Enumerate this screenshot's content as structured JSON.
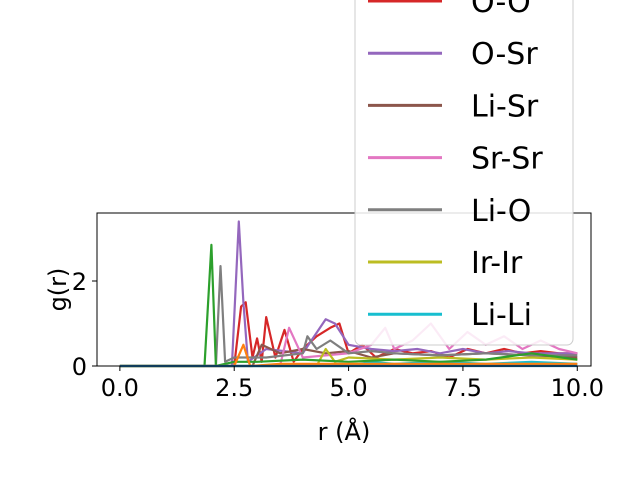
{
  "chart_data": {
    "type": "line",
    "xlabel": "r (Å)",
    "ylabel": "g(r)",
    "xlim": [
      -0.5,
      10.3
    ],
    "ylim": [
      0,
      3.6
    ],
    "xticks": [
      0.0,
      2.5,
      5.0,
      7.5,
      10.0
    ],
    "xtick_labels": [
      "0.0",
      "2.5",
      "5.0",
      "7.5",
      "10.0"
    ],
    "yticks": [
      0,
      2
    ],
    "ytick_labels": [
      "0",
      "2"
    ],
    "grid": false,
    "legend_position": "upper-right",
    "series": [
      {
        "name": "O-O",
        "color": "#d62728",
        "x": [
          0.0,
          2.5,
          2.65,
          2.75,
          2.9,
          3.0,
          3.1,
          3.2,
          3.4,
          3.6,
          3.8,
          4.0,
          4.3,
          4.6,
          4.8,
          5.0,
          5.3,
          5.6,
          6.0,
          6.4,
          6.8,
          7.2,
          7.6,
          8.0,
          8.4,
          8.8,
          9.2,
          9.6,
          10.0
        ],
        "y": [
          0.0,
          0.0,
          1.4,
          1.5,
          0.2,
          0.65,
          0.1,
          1.15,
          0.2,
          0.85,
          0.1,
          0.4,
          0.7,
          0.9,
          1.0,
          0.3,
          0.5,
          0.2,
          0.4,
          0.3,
          0.35,
          0.2,
          0.4,
          0.3,
          0.4,
          0.3,
          0.35,
          0.3,
          0.3
        ]
      },
      {
        "name": "O-Sr",
        "color": "#9467bd",
        "x": [
          0.0,
          2.45,
          2.6,
          2.7,
          2.8,
          3.2,
          4.0,
          4.5,
          4.7,
          5.0,
          5.5,
          6.0,
          6.5,
          7.0,
          7.5,
          8.0,
          8.5,
          9.0,
          9.5,
          10.0
        ],
        "y": [
          0.0,
          0.0,
          3.4,
          1.5,
          0.1,
          0.4,
          0.3,
          1.1,
          1.0,
          0.5,
          0.4,
          0.35,
          0.4,
          0.3,
          0.4,
          0.3,
          0.35,
          0.3,
          0.3,
          0.3
        ]
      },
      {
        "name": "Li-Sr",
        "color": "#8c564b",
        "x": [
          0.0,
          2.9,
          3.1,
          3.5,
          4.0,
          4.5,
          5.0,
          5.5,
          6.0,
          7.0,
          8.0,
          9.0,
          10.0
        ],
        "y": [
          0.0,
          0.0,
          0.5,
          0.3,
          0.4,
          0.3,
          0.35,
          0.2,
          0.3,
          0.25,
          0.3,
          0.25,
          0.2
        ]
      },
      {
        "name": "Sr-Sr",
        "color": "#e377c2",
        "x": [
          0.0,
          3.5,
          3.7,
          4.0,
          5.0,
          5.5,
          5.8,
          6.0,
          6.4,
          6.8,
          7.2,
          7.6,
          8.0,
          8.4,
          8.8,
          9.2,
          9.6,
          10.0
        ],
        "y": [
          0.0,
          0.0,
          0.9,
          0.2,
          0.3,
          0.5,
          0.9,
          0.4,
          0.6,
          1.0,
          0.4,
          0.8,
          0.5,
          0.7,
          0.4,
          0.6,
          0.4,
          0.3
        ]
      },
      {
        "name": "Li-O",
        "color": "#7f7f7f",
        "x": [
          0.0,
          2.1,
          2.2,
          2.3,
          2.5,
          3.2,
          4.0,
          4.1,
          4.3,
          4.6,
          5.0,
          5.5,
          6.0,
          7.0,
          8.0,
          9.0,
          10.0
        ],
        "y": [
          0.0,
          0.0,
          2.35,
          0.1,
          0.2,
          0.2,
          0.3,
          0.7,
          0.4,
          0.6,
          0.3,
          0.35,
          0.3,
          0.25,
          0.3,
          0.25,
          0.25
        ]
      },
      {
        "name": "Ir-Ir",
        "color": "#bcbd22",
        "x": [
          0.0,
          4.3,
          4.5,
          4.7,
          5.0,
          6.0,
          7.0,
          8.0,
          9.0,
          10.0
        ],
        "y": [
          0.0,
          0.0,
          0.4,
          0.1,
          0.2,
          0.15,
          0.2,
          0.15,
          0.2,
          0.15
        ]
      },
      {
        "name": "Li-Li",
        "color": "#17becf",
        "x": [
          0.0,
          5.0,
          5.5,
          6.0,
          7.0,
          8.0,
          9.0,
          10.0
        ],
        "y": [
          0.0,
          0.0,
          0.1,
          0.05,
          0.1,
          0.05,
          0.1,
          0.05
        ]
      },
      {
        "name": "",
        "color": "#2ca02c",
        "x": [
          0.0,
          1.85,
          2.0,
          2.1,
          2.5,
          3.0,
          4.0,
          5.0,
          6.0,
          7.0,
          8.0,
          9.0,
          10.0
        ],
        "y": [
          0.0,
          0.0,
          2.85,
          0.0,
          0.1,
          0.1,
          0.15,
          0.1,
          0.15,
          0.1,
          0.15,
          0.3,
          0.15
        ]
      },
      {
        "name": "",
        "color": "#ff7f0e",
        "x": [
          0.0,
          2.5,
          2.7,
          2.85,
          3.5,
          4.5,
          5.5,
          6.5,
          7.5,
          8.5,
          9.5,
          10.0
        ],
        "y": [
          0.0,
          0.0,
          0.5,
          0.0,
          0.05,
          0.05,
          0.05,
          0.05,
          0.05,
          0.05,
          0.05,
          0.05
        ]
      },
      {
        "name": "",
        "color": "#1f77b4",
        "x": [
          0.0,
          10.0
        ],
        "y": [
          0.0,
          0.0
        ]
      }
    ],
    "legend_entries": [
      "O-O",
      "O-Sr",
      "Li-Sr",
      "Sr-Sr",
      "Li-O",
      "Ir-Ir",
      "Li-Li"
    ]
  }
}
